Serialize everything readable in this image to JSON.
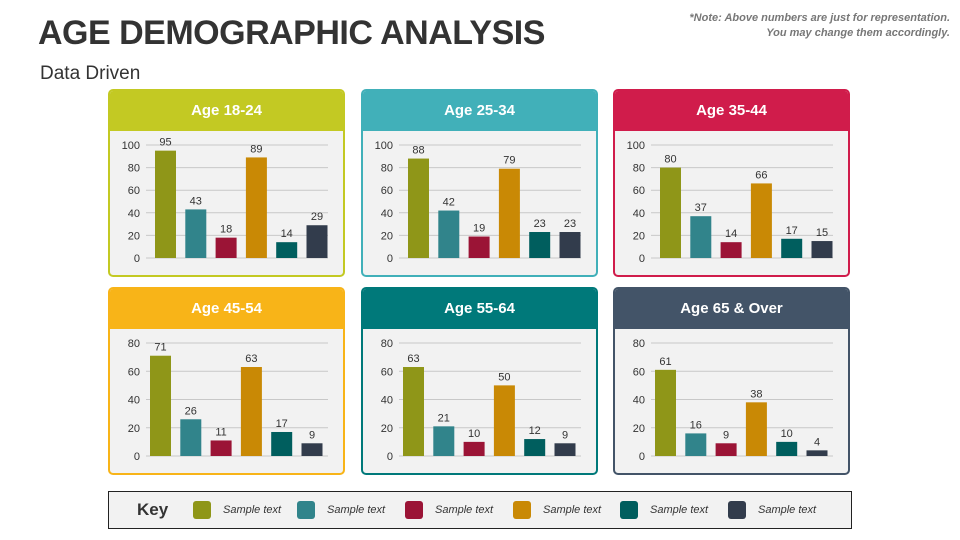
{
  "title": "AGE DEMOGRAPHIC ANALYSIS",
  "subtitle": "Data Driven",
  "note": [
    "*Note: Above numbers are just for representation.",
    "You may change them accordingly."
  ],
  "bar_colors": [
    "#8f9618",
    "#31848b",
    "#9b1436",
    "#c98905",
    "#005e5e",
    "#323c4c"
  ],
  "legend": {
    "title": "Key",
    "items": [
      "Sample text",
      "Sample text",
      "Sample text",
      "Sample text",
      "Sample text",
      "Sample text"
    ]
  },
  "chart_data": [
    {
      "type": "bar",
      "title": "Age 18-24",
      "header_color": "#c3c923",
      "ylim": [
        0,
        100
      ],
      "yticks": [
        0,
        20,
        40,
        60,
        80,
        100
      ],
      "values": [
        95,
        43,
        18,
        89,
        14,
        29
      ]
    },
    {
      "type": "bar",
      "title": "Age 25-34",
      "header_color": "#41b0b9",
      "ylim": [
        0,
        100
      ],
      "yticks": [
        0,
        20,
        40,
        60,
        80,
        100
      ],
      "values": [
        88,
        42,
        19,
        79,
        23,
        23
      ]
    },
    {
      "type": "bar",
      "title": "Age 35-44",
      "header_color": "#d01c4b",
      "ylim": [
        0,
        100
      ],
      "yticks": [
        0,
        20,
        40,
        60,
        80,
        100
      ],
      "values": [
        80,
        37,
        14,
        66,
        17,
        15
      ]
    },
    {
      "type": "bar",
      "title": "Age 45-54",
      "header_color": "#f8b418",
      "ylim": [
        0,
        80
      ],
      "yticks": [
        0,
        20,
        40,
        60,
        80
      ],
      "values": [
        71,
        26,
        11,
        63,
        17,
        9
      ]
    },
    {
      "type": "bar",
      "title": "Age 55-64",
      "header_color": "#00797a",
      "ylim": [
        0,
        80
      ],
      "yticks": [
        0,
        20,
        40,
        60,
        80
      ],
      "values": [
        63,
        21,
        10,
        50,
        12,
        9
      ]
    },
    {
      "type": "bar",
      "title": "Age 65 & Over",
      "header_color": "#435468",
      "ylim": [
        0,
        80
      ],
      "yticks": [
        0,
        20,
        40,
        60,
        80
      ],
      "values": [
        61,
        16,
        9,
        38,
        10,
        4
      ]
    }
  ]
}
